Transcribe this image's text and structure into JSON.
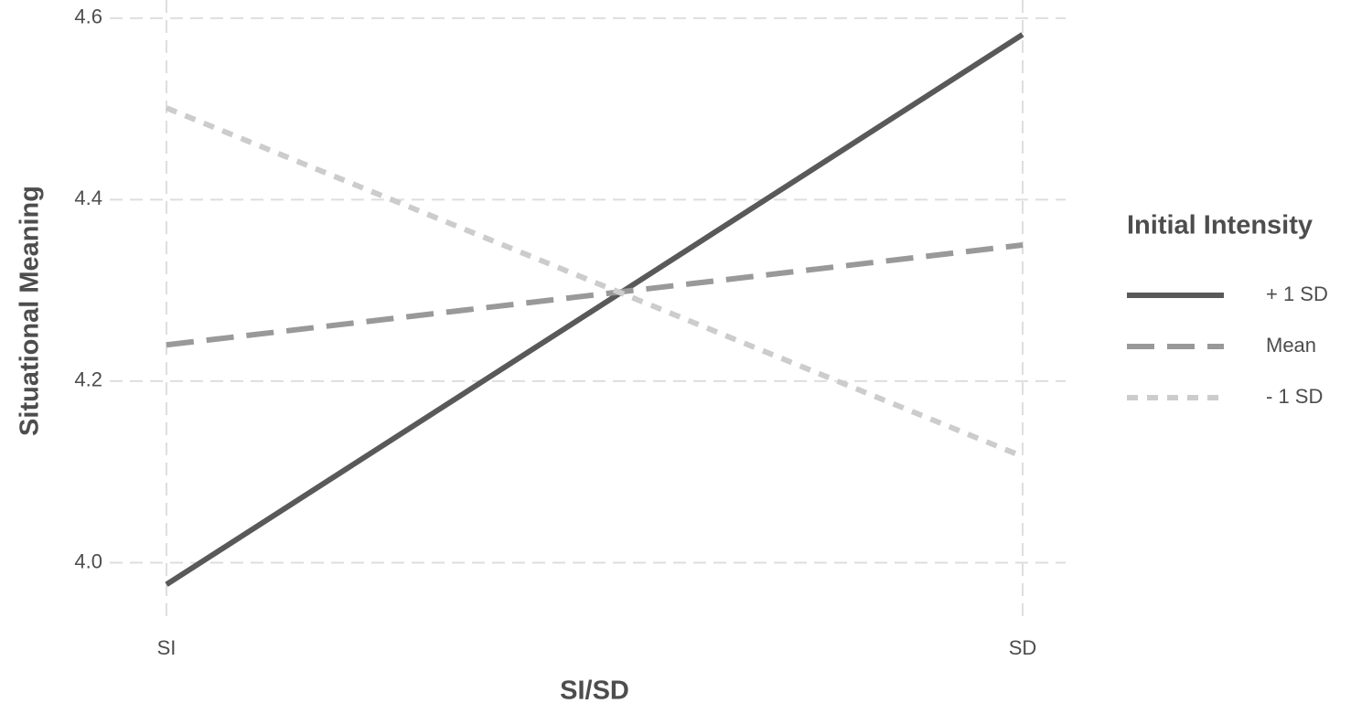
{
  "chart_data": {
    "type": "line",
    "x_label": "SI/SD",
    "y_label": "Situational Meaning",
    "categories": [
      "SI",
      "SD"
    ],
    "series": [
      {
        "name": "+ 1 SD",
        "color": "#595959",
        "dash": "solid",
        "values": [
          3.976,
          4.582
        ]
      },
      {
        "name": "Mean",
        "color": "#999999",
        "dash": "dashed",
        "values": [
          4.24,
          4.35
        ]
      },
      {
        "name": "- 1 SD",
        "color": "#cccccc",
        "dash": "dotted",
        "values": [
          4.501,
          4.117
        ]
      }
    ],
    "ylim": [
      3.935,
      4.62
    ],
    "yticks": [
      {
        "value": 4.0,
        "label": "4.0"
      },
      4.2,
      4.4,
      4.6
    ],
    "grid": true,
    "legend_title": "Initial Intensity",
    "legend_position": "right"
  }
}
